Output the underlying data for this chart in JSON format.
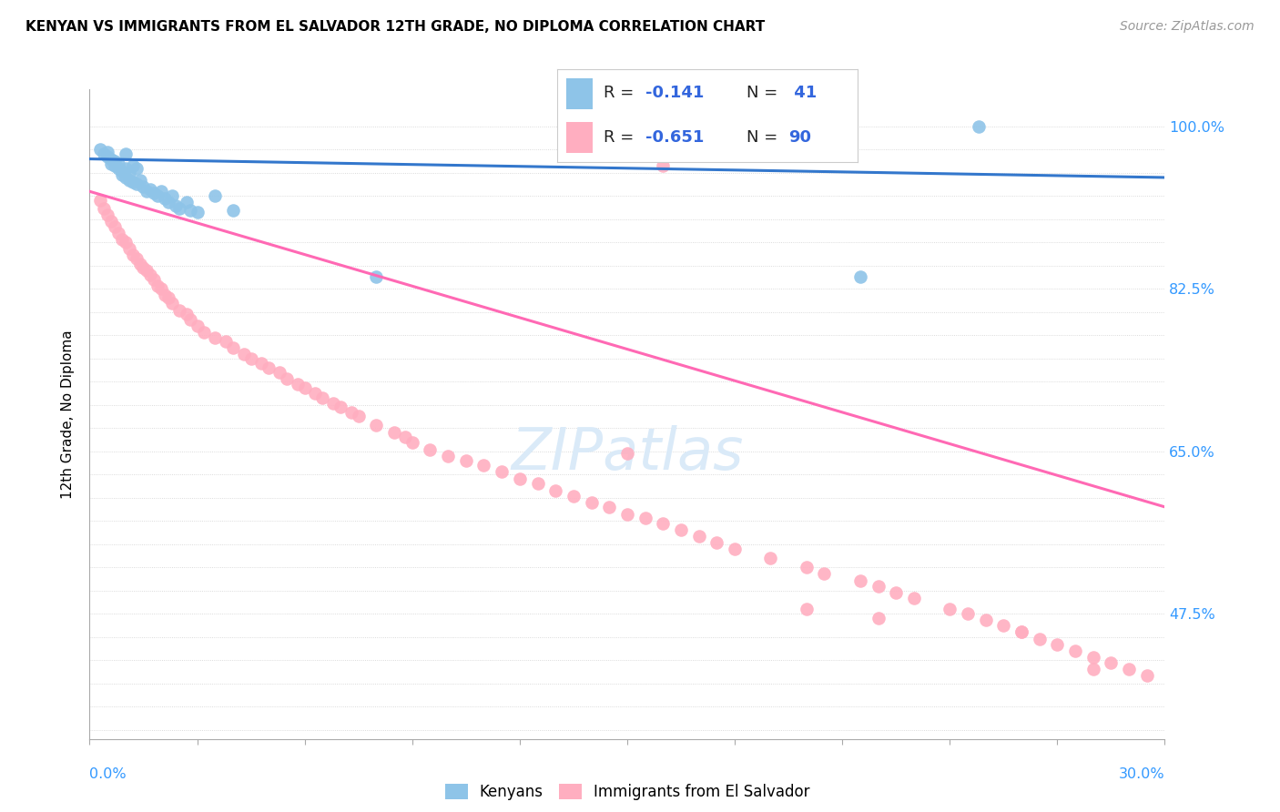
{
  "title": "KENYAN VS IMMIGRANTS FROM EL SALVADOR 12TH GRADE, NO DIPLOMA CORRELATION CHART",
  "source": "Source: ZipAtlas.com",
  "ylabel": "12th Grade, No Diploma",
  "legend_kenya": "Kenyans",
  "legend_salvador": "Immigrants from El Salvador",
  "xmin": 0.0,
  "xmax": 0.3,
  "ymin": 0.34,
  "ymax": 1.04,
  "color_kenya": "#8ec4e8",
  "color_salvador": "#ffaec0",
  "color_kenya_line": "#3377cc",
  "color_salvador_line": "#ff69b4",
  "watermark_color": "#daeaf8",
  "ytick_shown": {
    "1.0": "100.0%",
    "0.825": "82.5%",
    "0.65": "65.0%",
    "0.475": "47.5%"
  },
  "kenya_x": [
    0.003,
    0.004,
    0.005,
    0.005,
    0.006,
    0.006,
    0.007,
    0.007,
    0.008,
    0.008,
    0.009,
    0.009,
    0.01,
    0.01,
    0.01,
    0.011,
    0.011,
    0.012,
    0.012,
    0.013,
    0.013,
    0.014,
    0.015,
    0.016,
    0.017,
    0.018,
    0.019,
    0.02,
    0.021,
    0.022,
    0.023,
    0.024,
    0.025,
    0.027,
    0.028,
    0.03,
    0.035,
    0.04,
    0.08,
    0.215,
    0.248
  ],
  "kenya_y": [
    0.975,
    0.97,
    0.968,
    0.972,
    0.965,
    0.96,
    0.963,
    0.958,
    0.955,
    0.96,
    0.952,
    0.948,
    0.97,
    0.955,
    0.945,
    0.95,
    0.942,
    0.958,
    0.94,
    0.955,
    0.938,
    0.942,
    0.935,
    0.93,
    0.932,
    0.928,
    0.925,
    0.93,
    0.922,
    0.918,
    0.925,
    0.915,
    0.912,
    0.918,
    0.91,
    0.908,
    0.925,
    0.91,
    0.838,
    0.838,
    1.0
  ],
  "salvador_x": [
    0.003,
    0.004,
    0.005,
    0.006,
    0.007,
    0.008,
    0.009,
    0.01,
    0.011,
    0.012,
    0.013,
    0.014,
    0.015,
    0.016,
    0.017,
    0.018,
    0.019,
    0.02,
    0.021,
    0.022,
    0.023,
    0.025,
    0.027,
    0.028,
    0.03,
    0.032,
    0.035,
    0.038,
    0.04,
    0.043,
    0.045,
    0.048,
    0.05,
    0.053,
    0.055,
    0.058,
    0.06,
    0.063,
    0.065,
    0.068,
    0.07,
    0.073,
    0.075,
    0.08,
    0.085,
    0.088,
    0.09,
    0.095,
    0.1,
    0.105,
    0.11,
    0.115,
    0.12,
    0.125,
    0.13,
    0.135,
    0.14,
    0.145,
    0.15,
    0.155,
    0.16,
    0.165,
    0.17,
    0.175,
    0.18,
    0.19,
    0.2,
    0.205,
    0.215,
    0.22,
    0.225,
    0.23,
    0.24,
    0.245,
    0.25,
    0.255,
    0.26,
    0.265,
    0.27,
    0.275,
    0.28,
    0.285,
    0.29,
    0.295,
    0.15,
    0.16,
    0.2,
    0.22,
    0.26,
    0.28
  ],
  "salvador_y": [
    0.92,
    0.912,
    0.905,
    0.898,
    0.892,
    0.885,
    0.878,
    0.875,
    0.868,
    0.862,
    0.858,
    0.852,
    0.848,
    0.845,
    0.84,
    0.835,
    0.828,
    0.825,
    0.818,
    0.815,
    0.81,
    0.802,
    0.798,
    0.792,
    0.785,
    0.778,
    0.772,
    0.768,
    0.762,
    0.755,
    0.75,
    0.745,
    0.74,
    0.735,
    0.728,
    0.722,
    0.718,
    0.712,
    0.708,
    0.702,
    0.698,
    0.692,
    0.688,
    0.678,
    0.67,
    0.665,
    0.66,
    0.652,
    0.645,
    0.64,
    0.635,
    0.628,
    0.62,
    0.615,
    0.608,
    0.602,
    0.595,
    0.59,
    0.582,
    0.578,
    0.572,
    0.565,
    0.558,
    0.552,
    0.545,
    0.535,
    0.525,
    0.518,
    0.51,
    0.505,
    0.498,
    0.492,
    0.48,
    0.475,
    0.468,
    0.462,
    0.455,
    0.448,
    0.442,
    0.435,
    0.428,
    0.422,
    0.415,
    0.408,
    0.648,
    0.958,
    0.48,
    0.47,
    0.455,
    0.415
  ],
  "kenya_line_x": [
    0.0,
    0.3
  ],
  "kenya_line_y": [
    0.965,
    0.945
  ],
  "salvador_line_x": [
    0.0,
    0.3
  ],
  "salvador_line_y": [
    0.93,
    0.59
  ]
}
